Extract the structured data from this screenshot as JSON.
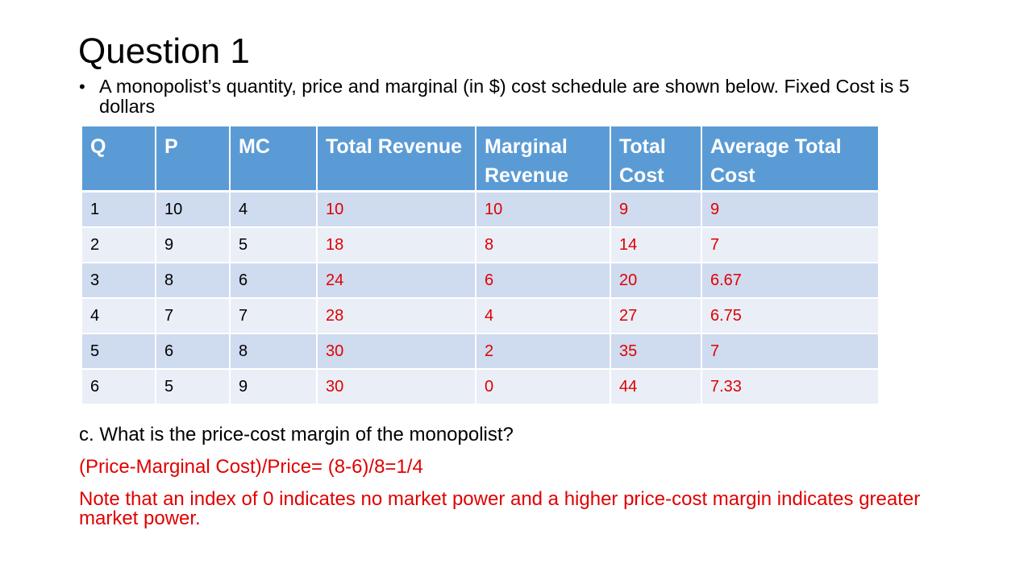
{
  "slide": {
    "title": "Question 1",
    "bullet": "A monopolist’s quantity, price and marginal (in $) cost schedule are shown below. Fixed Cost is 5 dollars",
    "question": "c. What is the price-cost margin of the monopolist?",
    "answer": "(Price-Marginal Cost)/Price= (8-6)/8=1/4",
    "note": "Note that an index of 0 indicates no market power and a higher price-cost margin indicates greater market power."
  },
  "table": {
    "headers": [
      "Q",
      "P",
      "MC",
      "Total Revenue",
      "Marginal Revenue",
      "Total Cost",
      "Average Total Cost"
    ],
    "rows": [
      [
        "1",
        "10",
        "4",
        "10",
        "10",
        "9",
        "9"
      ],
      [
        "2",
        "9",
        "5",
        "18",
        "8",
        "14",
        "7"
      ],
      [
        "3",
        "8",
        "6",
        "24",
        "6",
        "20",
        "6.67"
      ],
      [
        "4",
        "7",
        "7",
        "28",
        "4",
        "27",
        "6.75"
      ],
      [
        "5",
        "6",
        "8",
        "30",
        "2",
        "35",
        "7"
      ],
      [
        "6",
        "5",
        "9",
        "30",
        "0",
        "44",
        "7.33"
      ]
    ]
  },
  "colors": {
    "header_bg": "#5b9bd5",
    "row_odd_bg": "#cfdbef",
    "row_even_bg": "#e9eef7",
    "answer_text": "#e00000"
  }
}
